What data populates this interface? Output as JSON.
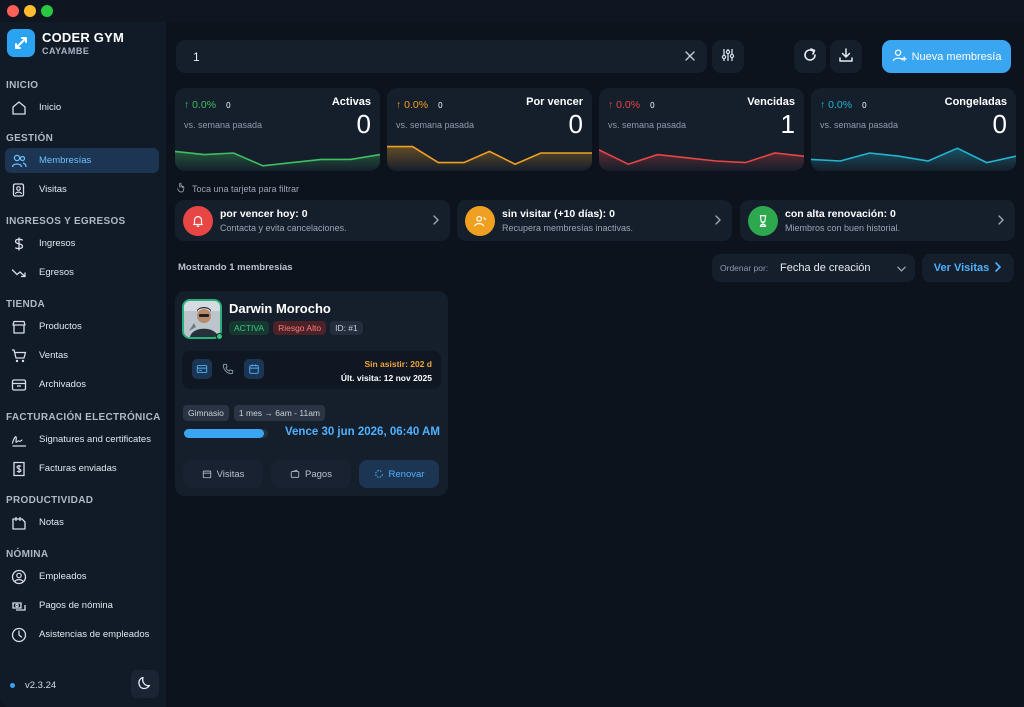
{
  "brand": {
    "name": "CODER GYM",
    "sub": "CAYAMBE",
    "accent": "#2aa3f0"
  },
  "sidebar": {
    "sections": {
      "inicio": "INICIO",
      "gestion": "GESTIÓN",
      "ingresos": "INGRESOS Y EGRESOS",
      "tienda": "TIENDA",
      "facturacion": "FACTURACIÓN ELECTRÓNICA",
      "productividad": "PRODUCTIVIDAD",
      "nomina": "NÓMINA"
    },
    "items": {
      "inicio": {
        "label": "Inicio",
        "icon": "home-icon"
      },
      "membresias": {
        "label": "Membresías",
        "icon": "users-icon"
      },
      "visitas": {
        "label": "Visitas",
        "icon": "visits-icon"
      },
      "ingresos": {
        "label": "Ingresos",
        "icon": "dollar-icon"
      },
      "egresos": {
        "label": "Egresos",
        "icon": "trend-down-icon"
      },
      "productos": {
        "label": "Productos",
        "icon": "store-icon"
      },
      "ventas": {
        "label": "Ventas",
        "icon": "cart-icon"
      },
      "archivados": {
        "label": "Archivados",
        "icon": "archive-icon"
      },
      "signatures": {
        "label": "Signatures and certificates",
        "icon": "signature-icon"
      },
      "facturas": {
        "label": "Facturas enviadas",
        "icon": "invoice-icon"
      },
      "notas": {
        "label": "Notas",
        "icon": "notes-icon"
      },
      "empleados": {
        "label": "Empleados",
        "icon": "user-circle-icon"
      },
      "pagos_nomina": {
        "label": "Pagos de nómina",
        "icon": "payroll-icon"
      },
      "asistencias": {
        "label": "Asistencias de empleados",
        "icon": "clock-icon"
      }
    },
    "version": "v2.3.24"
  },
  "search": {
    "value": "1"
  },
  "toolbar": {
    "new_membership": "Nueva membresía"
  },
  "stats": [
    {
      "title": "Activas",
      "pct": "0.0%",
      "count": "0",
      "compare": "vs. semana pasada",
      "value": "0",
      "color": "#3fbf5f",
      "trend": [
        0.55,
        0.45,
        0.5,
        0.1,
        0.2,
        0.3,
        0.3,
        0.45
      ]
    },
    {
      "title": "Por vencer",
      "pct": "0.0%",
      "count": "0",
      "compare": "vs. semana pasada",
      "value": "0",
      "color": "#f0a020",
      "trend": [
        0.7,
        0.7,
        0.2,
        0.2,
        0.55,
        0.15,
        0.5,
        0.5,
        0.5
      ]
    },
    {
      "title": "Vencidas",
      "pct": "0.0%",
      "count": "0",
      "compare": "vs. semana pasada",
      "value": "1",
      "color": "#e84545",
      "trend": [
        0.6,
        0.15,
        0.45,
        0.35,
        0.25,
        0.2,
        0.5,
        0.4
      ]
    },
    {
      "title": "Congeladas",
      "pct": "0.0%",
      "count": "0",
      "compare": "vs. semana pasada",
      "value": "0",
      "color": "#22b5d0",
      "trend": [
        0.3,
        0.25,
        0.5,
        0.4,
        0.25,
        0.65,
        0.2,
        0.4
      ]
    }
  ],
  "hint": "Toca una tarjeta para filtrar",
  "alerts": [
    {
      "title": "por vencer hoy: 0",
      "sub": "Contacta y evita cancelaciones.",
      "color": "#e84545",
      "icon": "bell-icon"
    },
    {
      "title": "sin visitar (+10 días): 0",
      "sub": "Recupera membresías inactivas.",
      "color": "#f0a020",
      "icon": "user-icon"
    },
    {
      "title": "con alta renovación: 0",
      "sub": "Miembros con buen historial.",
      "color": "#2ea84f",
      "icon": "trophy-icon"
    }
  ],
  "list": {
    "showing": "Mostrando 1 membresías",
    "order_label": "Ordenar por:",
    "order_value": "Fecha de creación",
    "see_visits": "Ver Visitas"
  },
  "member": {
    "name": "Darwin Morocho",
    "status": "ACTIVA",
    "risk": "Riesgo Alto",
    "id": "ID: #1",
    "no_visit": "Sin asistir: 202 d",
    "last_visit": "Últ. visita: 12 nov 2025",
    "plan": "Gimnasio",
    "schedule": "1 mes → 6am - 11am",
    "progress": 0.95,
    "expires": "Vence 30 jun 2026, 06:40 AM",
    "actions": {
      "visitas": "Visitas",
      "pagos": "Pagos",
      "renovar": "Renovar"
    }
  }
}
